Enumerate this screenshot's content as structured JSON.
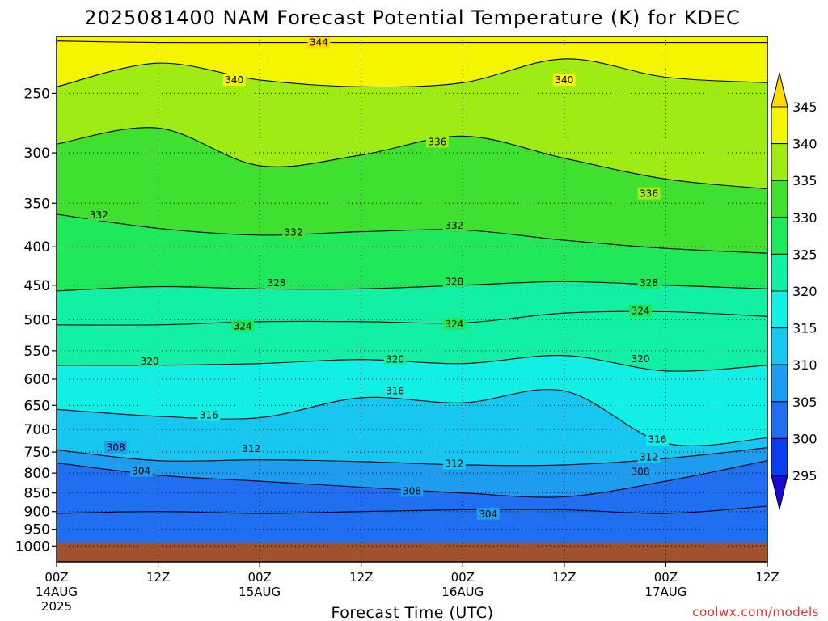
{
  "chart_data": {
    "type": "heatmap",
    "title": "2025081400 NAM Forecast Potential Temperature (K) for KDEC",
    "xlabel": "Forecast Time (UTC)",
    "ylabel": "",
    "y_axis": {
      "ticks": [
        250,
        300,
        350,
        400,
        450,
        500,
        550,
        600,
        650,
        700,
        750,
        800,
        850,
        900,
        950,
        1000
      ],
      "range": [
        210,
        1050
      ],
      "reversed": true,
      "scale": "log"
    },
    "x_axis": {
      "range": [
        0,
        84
      ],
      "ticks": [
        {
          "hour": 0,
          "label": "00Z",
          "sub": [
            "14AUG",
            "2025"
          ]
        },
        {
          "hour": 12,
          "label": "12Z",
          "sub": []
        },
        {
          "hour": 24,
          "label": "00Z",
          "sub": [
            "15AUG"
          ]
        },
        {
          "hour": 36,
          "label": "12Z",
          "sub": []
        },
        {
          "hour": 48,
          "label": "00Z",
          "sub": [
            "16AUG"
          ]
        },
        {
          "hour": 60,
          "label": "12Z",
          "sub": []
        },
        {
          "hour": 72,
          "label": "00Z",
          "sub": [
            "17AUG"
          ]
        },
        {
          "hour": 84,
          "label": "12Z",
          "sub": []
        }
      ]
    },
    "grid": true,
    "colorbar": {
      "levels": [
        295,
        300,
        305,
        310,
        315,
        320,
        325,
        330,
        335,
        340,
        345
      ],
      "colors": [
        "#1a0ad6",
        "#0a3df0",
        "#1f6ff0",
        "#1e9cf0",
        "#17c7f2",
        "#12f0e6",
        "#12f0a6",
        "#1fe85a",
        "#3fe030",
        "#9fec14",
        "#f5f500",
        "#ffd900"
      ],
      "placement": "right",
      "extend": "both"
    },
    "ground_color": "#a0522d",
    "isentropes": [
      {
        "level": 304,
        "pressures": [
          905,
          900,
          905,
          900,
          895,
          895,
          905,
          885
        ]
      },
      {
        "level": 308,
        "pressures": [
          775,
          805,
          820,
          835,
          850,
          860,
          820,
          770
        ]
      },
      {
        "level": 312,
        "pressures": [
          745,
          770,
          768,
          772,
          780,
          780,
          765,
          740
        ]
      },
      {
        "level": 316,
        "pressures": [
          658,
          672,
          675,
          635,
          645,
          622,
          730,
          718
        ]
      },
      {
        "level": 320,
        "pressures": [
          575,
          575,
          572,
          565,
          572,
          558,
          585,
          575
        ]
      },
      {
        "level": 324,
        "pressures": [
          508,
          508,
          503,
          503,
          505,
          490,
          488,
          495
        ]
      },
      {
        "level": 328,
        "pressures": [
          458,
          452,
          455,
          455,
          450,
          445,
          450,
          455
        ]
      },
      {
        "level": 332,
        "pressures": [
          362,
          378,
          386,
          382,
          380,
          392,
          402,
          408
        ]
      },
      {
        "level": 336,
        "pressures": [
          292,
          278,
          312,
          302,
          285,
          305,
          325,
          335
        ]
      },
      {
        "level": 340,
        "pressures": [
          245,
          228,
          240,
          245,
          242,
          225,
          238,
          242
        ]
      },
      {
        "level": 344,
        "pressures": [
          213,
          214,
          214,
          214,
          214,
          214,
          214,
          214
        ]
      }
    ],
    "contour_labels": [
      {
        "text": "344",
        "hour": 31,
        "pressure": 214
      },
      {
        "text": "340",
        "hour": 21,
        "pressure": 240
      },
      {
        "text": "340",
        "hour": 60,
        "pressure": 240
      },
      {
        "text": "336",
        "hour": 45,
        "pressure": 290
      },
      {
        "text": "336",
        "hour": 70,
        "pressure": 340
      },
      {
        "text": "332",
        "hour": 5,
        "pressure": 363
      },
      {
        "text": "332",
        "hour": 28,
        "pressure": 383
      },
      {
        "text": "332",
        "hour": 47,
        "pressure": 375
      },
      {
        "text": "328",
        "hour": 26,
        "pressure": 447
      },
      {
        "text": "328",
        "hour": 47,
        "pressure": 445
      },
      {
        "text": "328",
        "hour": 70,
        "pressure": 447
      },
      {
        "text": "324",
        "hour": 22,
        "pressure": 510
      },
      {
        "text": "324",
        "hour": 47,
        "pressure": 507
      },
      {
        "text": "324",
        "hour": 69,
        "pressure": 487
      },
      {
        "text": "320",
        "hour": 11,
        "pressure": 568
      },
      {
        "text": "320",
        "hour": 40,
        "pressure": 565
      },
      {
        "text": "320",
        "hour": 69,
        "pressure": 564
      },
      {
        "text": "316",
        "hour": 18,
        "pressure": 670
      },
      {
        "text": "316",
        "hour": 40,
        "pressure": 622
      },
      {
        "text": "316",
        "hour": 71,
        "pressure": 722
      },
      {
        "text": "312",
        "hour": 23,
        "pressure": 742
      },
      {
        "text": "312",
        "hour": 47,
        "pressure": 777
      },
      {
        "text": "312",
        "hour": 70,
        "pressure": 762
      },
      {
        "text": "308",
        "hour": 7,
        "pressure": 740
      },
      {
        "text": "308",
        "hour": 42,
        "pressure": 845
      },
      {
        "text": "308",
        "hour": 69,
        "pressure": 797
      },
      {
        "text": "304",
        "hour": 10,
        "pressure": 795
      },
      {
        "text": "304",
        "hour": 51,
        "pressure": 907
      }
    ],
    "credit": "coolwx.com/models"
  }
}
